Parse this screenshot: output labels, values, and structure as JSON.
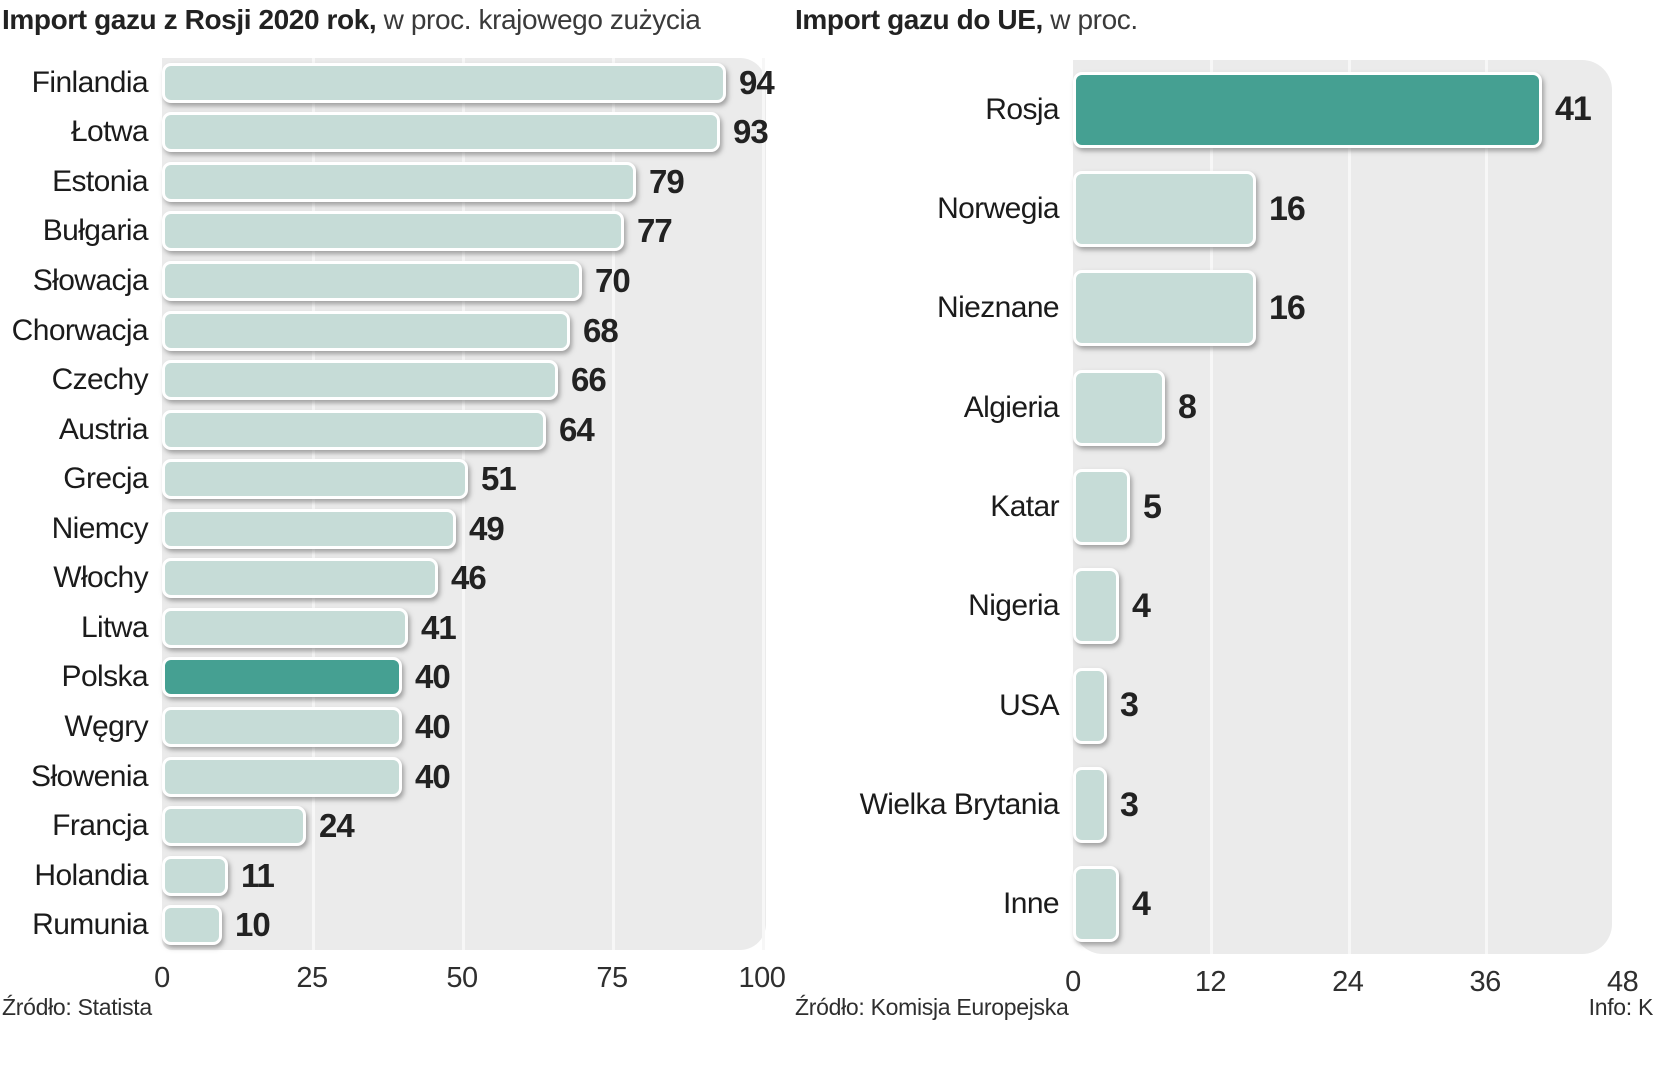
{
  "chart_data": [
    {
      "type": "bar",
      "orientation": "horizontal",
      "title_bold": "Import gazu z Rosji 2020 rok,",
      "title_rest": " w proc. krajowego zużycia",
      "source": "Źródło: Statista",
      "xlim": [
        0,
        100
      ],
      "ticks": [
        0,
        25,
        50,
        75,
        100
      ],
      "grid": true,
      "highlight_category": "Polska",
      "categories": [
        "Finlandia",
        "Łotwa",
        "Estonia",
        "Bułgaria",
        "Słowacja",
        "Chorwacja",
        "Czechy",
        "Austria",
        "Grecja",
        "Niemcy",
        "Włochy",
        "Litwa",
        "Polska",
        "Węgry",
        "Słowenia",
        "Francja",
        "Holandia",
        "Rumunia"
      ],
      "values": [
        94,
        93,
        79,
        77,
        70,
        68,
        66,
        64,
        51,
        49,
        46,
        41,
        40,
        40,
        40,
        24,
        11,
        10
      ]
    },
    {
      "type": "bar",
      "orientation": "horizontal",
      "title_bold": "Import gazu do UE,",
      "title_rest": " w proc.",
      "source": "Źródło: Komisja Europejska",
      "xlim": [
        0,
        48
      ],
      "ticks": [
        0,
        12,
        24,
        36,
        48
      ],
      "grid": true,
      "highlight_category": "Rosja",
      "categories": [
        "Rosja",
        "Norwegia",
        "Nieznane",
        "Algieria",
        "Katar",
        "Nigeria",
        "USA",
        "Wielka Brytania",
        "Inne"
      ],
      "values": [
        41,
        16,
        16,
        8,
        5,
        4,
        3,
        3,
        4
      ]
    }
  ],
  "footer": {
    "info": "Info: K"
  },
  "colors": {
    "bar_light": "#c6dcd7",
    "bar_highlight": "#45a092",
    "plot_bg": "#ebebeb",
    "gridline": "#f7f7f7",
    "value_text": "#222222"
  }
}
